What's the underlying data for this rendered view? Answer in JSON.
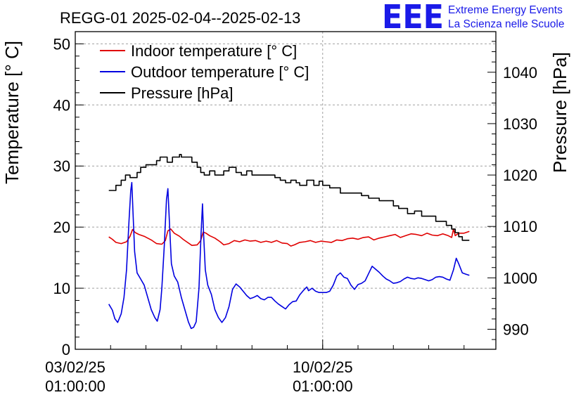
{
  "chart_data": {
    "type": "line",
    "title": "REGG-01 2025-02-04--2025-02-13",
    "ylabel_left": "Temperature [° C]",
    "ylabel_right": "Pressure [hPa]",
    "xlabel": "",
    "x_unit": "days since 03/02/25 01:00:00",
    "x_range": [
      0,
      11.9
    ],
    "ylim_left": [
      0,
      52
    ],
    "ylim_right": [
      986.1,
      1047.9
    ],
    "grid": true,
    "legend_position": "top-left",
    "x_ticks": [
      {
        "x": 0,
        "label_date": "03/02/25",
        "label_time": "01:00:00"
      },
      {
        "x": 7,
        "label_date": "10/02/25",
        "label_time": "01:00:00"
      }
    ],
    "y_ticks_left": [
      0,
      10,
      20,
      30,
      40,
      50
    ],
    "y_ticks_right": [
      990,
      1000,
      1010,
      1020,
      1030,
      1040
    ],
    "series": [
      {
        "name": "Indoor temperature [° C]",
        "axis": "left",
        "color": "#e00000",
        "points": [
          [
            0.95,
            18.4
          ],
          [
            1.05,
            18
          ],
          [
            1.15,
            17.5
          ],
          [
            1.3,
            17.3
          ],
          [
            1.45,
            17.6
          ],
          [
            1.55,
            18.5
          ],
          [
            1.62,
            19.6
          ],
          [
            1.7,
            19.1
          ],
          [
            1.8,
            18.8
          ],
          [
            1.95,
            18.5
          ],
          [
            2.05,
            18.2
          ],
          [
            2.15,
            17.9
          ],
          [
            2.3,
            17.3
          ],
          [
            2.45,
            17.2
          ],
          [
            2.55,
            17.8
          ],
          [
            2.62,
            19.4
          ],
          [
            2.7,
            19.7
          ],
          [
            2.8,
            19
          ],
          [
            2.95,
            18.5
          ],
          [
            3.05,
            18
          ],
          [
            3.15,
            17.6
          ],
          [
            3.3,
            17
          ],
          [
            3.45,
            17.1
          ],
          [
            3.55,
            17.8
          ],
          [
            3.62,
            19.2
          ],
          [
            3.7,
            19
          ],
          [
            3.8,
            18.6
          ],
          [
            3.95,
            18.2
          ],
          [
            4.1,
            17.6
          ],
          [
            4.2,
            17.1
          ],
          [
            4.35,
            17.3
          ],
          [
            4.5,
            17.8
          ],
          [
            4.65,
            17.6
          ],
          [
            4.8,
            17.9
          ],
          [
            4.95,
            17.7
          ],
          [
            5.1,
            17.8
          ],
          [
            5.25,
            17.5
          ],
          [
            5.4,
            17.7
          ],
          [
            5.55,
            17.5
          ],
          [
            5.7,
            17.8
          ],
          [
            5.85,
            17.4
          ],
          [
            6.0,
            17.3
          ],
          [
            6.1,
            16.9
          ],
          [
            6.2,
            17.1
          ],
          [
            6.35,
            17.5
          ],
          [
            6.5,
            17.6
          ],
          [
            6.65,
            17.8
          ],
          [
            6.8,
            17.5
          ],
          [
            6.95,
            17.7
          ],
          [
            7.1,
            17.6
          ],
          [
            7.25,
            17.5
          ],
          [
            7.4,
            17.9
          ],
          [
            7.55,
            17.8
          ],
          [
            7.7,
            18.1
          ],
          [
            7.85,
            18.2
          ],
          [
            8.0,
            18
          ],
          [
            8.15,
            18.3
          ],
          [
            8.3,
            18.4
          ],
          [
            8.45,
            17.9
          ],
          [
            8.6,
            18.2
          ],
          [
            8.75,
            18.4
          ],
          [
            8.9,
            18.6
          ],
          [
            9.05,
            18.8
          ],
          [
            9.2,
            18.3
          ],
          [
            9.35,
            18.6
          ],
          [
            9.5,
            18.9
          ],
          [
            9.65,
            18.8
          ],
          [
            9.8,
            18.6
          ],
          [
            9.95,
            19
          ],
          [
            10.1,
            18.7
          ],
          [
            10.25,
            18.6
          ],
          [
            10.4,
            18.9
          ],
          [
            10.55,
            18.6
          ],
          [
            10.65,
            18.3
          ],
          [
            10.7,
            19.7
          ],
          [
            10.75,
            18.6
          ],
          [
            10.85,
            19
          ],
          [
            11.0,
            19
          ],
          [
            11.15,
            19.3
          ]
        ]
      },
      {
        "name": "Outdoor temperature [° C]",
        "axis": "left",
        "color": "#0000e0",
        "points": [
          [
            0.95,
            7.4
          ],
          [
            1.05,
            6.4
          ],
          [
            1.12,
            5
          ],
          [
            1.2,
            4.4
          ],
          [
            1.3,
            5.8
          ],
          [
            1.38,
            8.5
          ],
          [
            1.45,
            13
          ],
          [
            1.52,
            21
          ],
          [
            1.57,
            26
          ],
          [
            1.6,
            27.3
          ],
          [
            1.63,
            23
          ],
          [
            1.68,
            16
          ],
          [
            1.75,
            12.5
          ],
          [
            1.85,
            11.5
          ],
          [
            1.95,
            10.5
          ],
          [
            2.05,
            8.5
          ],
          [
            2.15,
            6.5
          ],
          [
            2.25,
            5.2
          ],
          [
            2.32,
            4.6
          ],
          [
            2.4,
            6.5
          ],
          [
            2.45,
            10
          ],
          [
            2.52,
            17
          ],
          [
            2.58,
            24.5
          ],
          [
            2.62,
            26.3
          ],
          [
            2.67,
            20
          ],
          [
            2.72,
            14
          ],
          [
            2.8,
            12
          ],
          [
            2.9,
            11
          ],
          [
            3.0,
            8.5
          ],
          [
            3.1,
            6.5
          ],
          [
            3.2,
            4.5
          ],
          [
            3.28,
            3.4
          ],
          [
            3.35,
            3.6
          ],
          [
            3.42,
            4.5
          ],
          [
            3.5,
            10
          ],
          [
            3.56,
            19
          ],
          [
            3.6,
            23.8
          ],
          [
            3.63,
            19
          ],
          [
            3.68,
            13
          ],
          [
            3.75,
            10.5
          ],
          [
            3.85,
            9
          ],
          [
            3.95,
            6.5
          ],
          [
            4.05,
            5.2
          ],
          [
            4.15,
            4.4
          ],
          [
            4.25,
            5.2
          ],
          [
            4.35,
            7
          ],
          [
            4.45,
            9.8
          ],
          [
            4.55,
            10.7
          ],
          [
            4.65,
            10.2
          ],
          [
            4.75,
            9.5
          ],
          [
            4.85,
            8.8
          ],
          [
            4.95,
            8.3
          ],
          [
            5.05,
            8.5
          ],
          [
            5.15,
            8.8
          ],
          [
            5.25,
            8.3
          ],
          [
            5.35,
            8.1
          ],
          [
            5.45,
            8.5
          ],
          [
            5.55,
            8.5
          ],
          [
            5.65,
            7.9
          ],
          [
            5.75,
            7.4
          ],
          [
            5.85,
            7
          ],
          [
            5.95,
            6.6
          ],
          [
            6.05,
            7.3
          ],
          [
            6.15,
            7.8
          ],
          [
            6.25,
            7.9
          ],
          [
            6.35,
            8.9
          ],
          [
            6.45,
            9.6
          ],
          [
            6.55,
            10.2
          ],
          [
            6.6,
            9.6
          ],
          [
            6.7,
            10
          ],
          [
            6.8,
            9.5
          ],
          [
            6.9,
            9.3
          ],
          [
            7.0,
            9.3
          ],
          [
            7.1,
            9.3
          ],
          [
            7.2,
            9.5
          ],
          [
            7.3,
            10.5
          ],
          [
            7.4,
            12
          ],
          [
            7.5,
            12.5
          ],
          [
            7.6,
            11.8
          ],
          [
            7.7,
            11.6
          ],
          [
            7.8,
            10.5
          ],
          [
            7.9,
            9.8
          ],
          [
            8.0,
            10.6
          ],
          [
            8.1,
            10.8
          ],
          [
            8.2,
            11.2
          ],
          [
            8.3,
            12.4
          ],
          [
            8.4,
            13.6
          ],
          [
            8.5,
            13.1
          ],
          [
            8.6,
            12.6
          ],
          [
            8.7,
            12
          ],
          [
            8.8,
            11.5
          ],
          [
            8.9,
            11.2
          ],
          [
            9.0,
            10.8
          ],
          [
            9.1,
            10.9
          ],
          [
            9.2,
            11.1
          ],
          [
            9.3,
            11.5
          ],
          [
            9.4,
            11.8
          ],
          [
            9.5,
            11.6
          ],
          [
            9.6,
            11.5
          ],
          [
            9.7,
            11.7
          ],
          [
            9.8,
            11.6
          ],
          [
            9.9,
            11.4
          ],
          [
            10.0,
            11.2
          ],
          [
            10.1,
            11.4
          ],
          [
            10.2,
            11.8
          ],
          [
            10.3,
            11.9
          ],
          [
            10.4,
            11.8
          ],
          [
            10.5,
            11.5
          ],
          [
            10.6,
            11.3
          ],
          [
            10.7,
            13
          ],
          [
            10.78,
            14.9
          ],
          [
            10.85,
            14
          ],
          [
            10.95,
            12.5
          ],
          [
            11.05,
            12.3
          ],
          [
            11.15,
            12.1
          ]
        ]
      },
      {
        "name": "Pressure [hPa]",
        "axis": "right",
        "color": "#000000",
        "points": [
          [
            0.95,
            1017
          ],
          [
            1.15,
            1017
          ],
          [
            1.15,
            1018
          ],
          [
            1.3,
            1018
          ],
          [
            1.3,
            1019
          ],
          [
            1.42,
            1019
          ],
          [
            1.42,
            1020
          ],
          [
            1.55,
            1020
          ],
          [
            1.55,
            1019.5
          ],
          [
            1.75,
            1019.5
          ],
          [
            1.75,
            1020.5
          ],
          [
            1.85,
            1020.5
          ],
          [
            1.85,
            1021.5
          ],
          [
            2.0,
            1021.5
          ],
          [
            2.0,
            1022
          ],
          [
            2.3,
            1022
          ],
          [
            2.3,
            1022.8
          ],
          [
            2.4,
            1022.8
          ],
          [
            2.4,
            1023.5
          ],
          [
            2.6,
            1023.5
          ],
          [
            2.6,
            1022.5
          ],
          [
            2.75,
            1022.5
          ],
          [
            2.75,
            1023.5
          ],
          [
            2.95,
            1023.5
          ],
          [
            2.95,
            1024
          ],
          [
            3.0,
            1024
          ],
          [
            3.0,
            1023.5
          ],
          [
            3.3,
            1023.5
          ],
          [
            3.3,
            1022.5
          ],
          [
            3.45,
            1022.5
          ],
          [
            3.45,
            1021.5
          ],
          [
            3.55,
            1021.5
          ],
          [
            3.55,
            1020.5
          ],
          [
            3.65,
            1020.5
          ],
          [
            3.65,
            1020
          ],
          [
            3.8,
            1020
          ],
          [
            3.8,
            1020.8
          ],
          [
            3.95,
            1020.8
          ],
          [
            3.95,
            1020
          ],
          [
            4.2,
            1020
          ],
          [
            4.2,
            1020.8
          ],
          [
            4.35,
            1020.8
          ],
          [
            4.35,
            1021.5
          ],
          [
            4.55,
            1021.5
          ],
          [
            4.55,
            1020.5
          ],
          [
            4.7,
            1020.5
          ],
          [
            4.7,
            1020
          ],
          [
            4.85,
            1020
          ],
          [
            4.85,
            1020.8
          ],
          [
            5.0,
            1020.8
          ],
          [
            5.0,
            1020
          ],
          [
            5.65,
            1020
          ],
          [
            5.65,
            1019.5
          ],
          [
            5.8,
            1019.5
          ],
          [
            5.8,
            1019
          ],
          [
            5.95,
            1019
          ],
          [
            5.95,
            1018.5
          ],
          [
            6.1,
            1018.5
          ],
          [
            6.1,
            1019
          ],
          [
            6.25,
            1019
          ],
          [
            6.25,
            1018.5
          ],
          [
            6.35,
            1018.5
          ],
          [
            6.35,
            1018
          ],
          [
            6.55,
            1018
          ],
          [
            6.55,
            1019
          ],
          [
            6.75,
            1019
          ],
          [
            6.75,
            1018
          ],
          [
            6.9,
            1018
          ],
          [
            6.9,
            1018.8
          ],
          [
            7.0,
            1018.8
          ],
          [
            7.0,
            1018
          ],
          [
            7.2,
            1018
          ],
          [
            7.2,
            1017.5
          ],
          [
            7.5,
            1017.5
          ],
          [
            7.5,
            1016.5
          ],
          [
            8.1,
            1016.5
          ],
          [
            8.1,
            1016
          ],
          [
            8.3,
            1016
          ],
          [
            8.3,
            1015.5
          ],
          [
            8.6,
            1015.5
          ],
          [
            8.6,
            1015
          ],
          [
            9.0,
            1015
          ],
          [
            9.0,
            1014
          ],
          [
            9.15,
            1014
          ],
          [
            9.15,
            1013.5
          ],
          [
            9.4,
            1013.5
          ],
          [
            9.4,
            1012.5
          ],
          [
            9.6,
            1012.5
          ],
          [
            9.6,
            1013
          ],
          [
            9.8,
            1013
          ],
          [
            9.8,
            1012
          ],
          [
            10.2,
            1012
          ],
          [
            10.2,
            1011
          ],
          [
            10.5,
            1011
          ],
          [
            10.5,
            1010.2
          ],
          [
            10.65,
            1010.2
          ],
          [
            10.65,
            1009.5
          ],
          [
            10.75,
            1009.5
          ],
          [
            10.75,
            1008.8
          ],
          [
            10.85,
            1008.8
          ],
          [
            10.85,
            1008
          ],
          [
            10.95,
            1008
          ],
          [
            10.95,
            1007.3
          ],
          [
            11.15,
            1007.3
          ]
        ]
      }
    ]
  },
  "logo": {
    "initials": "EEE",
    "line1": "Extreme Energy Events",
    "line2": "La Scienza nelle Scuole"
  },
  "colors": {
    "grid": "#a0a0a0",
    "logo": "#1a1ae8"
  }
}
